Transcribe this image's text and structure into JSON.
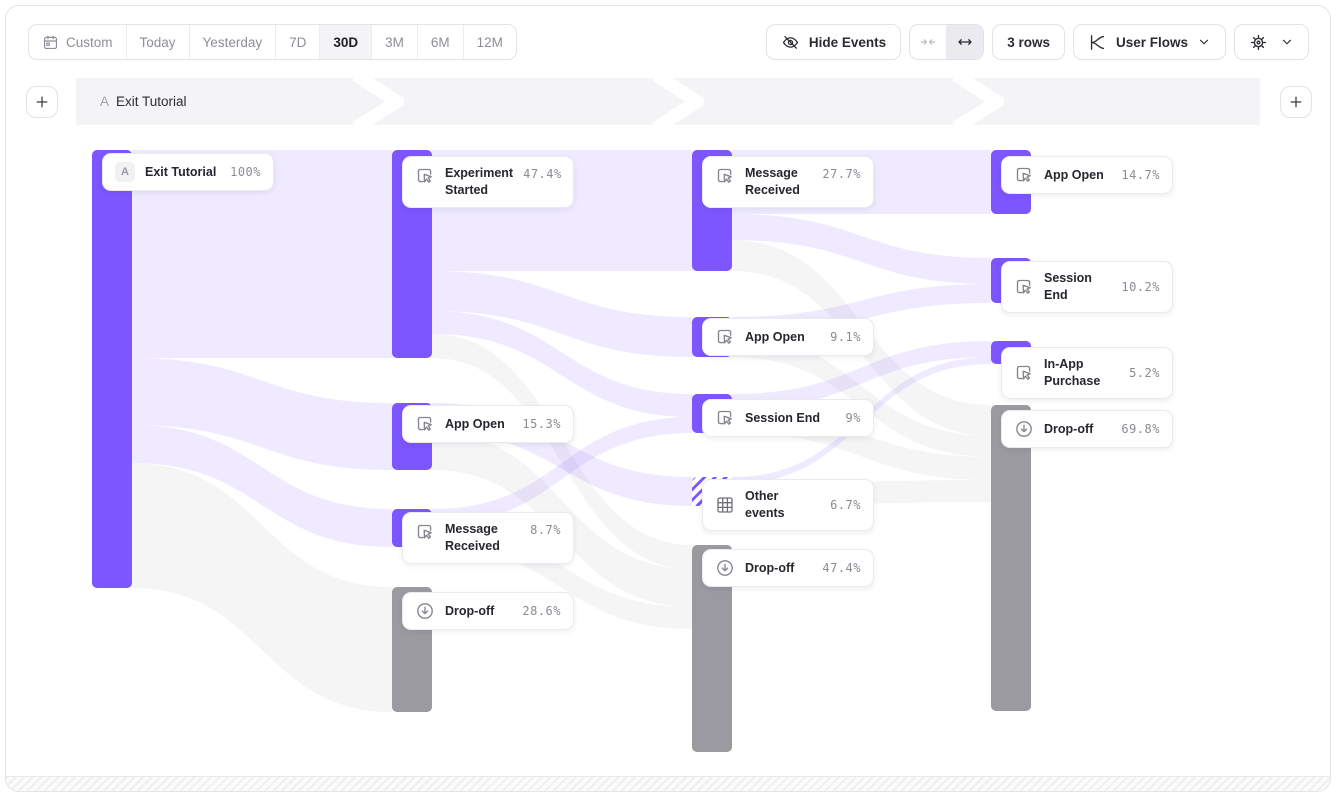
{
  "toolbar": {
    "date_ranges": [
      "Custom",
      "Today",
      "Yesterday",
      "7D",
      "30D",
      "3M",
      "6M",
      "12M"
    ],
    "selected_range": "30D",
    "hide_events_label": "Hide Events",
    "rows_label": "3 rows",
    "view_mode_label": "User Flows",
    "icons": [
      "calendar-icon",
      "eye-off-icon",
      "collapse-columns-icon",
      "expand-columns-icon",
      "flows-chart-icon",
      "chevron-down-icon",
      "gear-icon"
    ]
  },
  "flow_header": {
    "step_letter": "A",
    "step_name": "Exit Tutorial"
  },
  "colors": {
    "accent_purple": "#7d56ff",
    "flow_purple_light": "#ece8fe",
    "dropoff_gray": "#9a9aa0",
    "flow_gray_light": "#f3f3f5",
    "band_gray": "#f4f4f6"
  },
  "chart_data": {
    "type": "sankey",
    "start_event": "Exit Tutorial",
    "units": "percent of users",
    "columns": [
      {
        "step": 1,
        "nodes": [
          {
            "name": "Exit Tutorial",
            "value_pct": 100,
            "label": "100%",
            "kind": "start"
          }
        ]
      },
      {
        "step": 2,
        "nodes": [
          {
            "name": "Experiment Started",
            "value_pct": 47.4,
            "label": "47.4%",
            "kind": "event"
          },
          {
            "name": "App Open",
            "value_pct": 15.3,
            "label": "15.3%",
            "kind": "event"
          },
          {
            "name": "Message Received",
            "value_pct": 8.7,
            "label": "8.7%",
            "kind": "event"
          },
          {
            "name": "Drop-off",
            "value_pct": 28.6,
            "label": "28.6%",
            "kind": "dropoff"
          }
        ]
      },
      {
        "step": 3,
        "nodes": [
          {
            "name": "Message Received",
            "value_pct": 27.7,
            "label": "27.7%",
            "kind": "event"
          },
          {
            "name": "App Open",
            "value_pct": 9.1,
            "label": "9.1%",
            "kind": "event"
          },
          {
            "name": "Session End",
            "value_pct": 9,
            "label": "9%",
            "kind": "event"
          },
          {
            "name": "Other events",
            "value_pct": 6.7,
            "label": "6.7%",
            "kind": "other"
          },
          {
            "name": "Drop-off",
            "value_pct": 47.4,
            "label": "47.4%",
            "kind": "dropoff"
          }
        ]
      },
      {
        "step": 4,
        "nodes": [
          {
            "name": "App Open",
            "value_pct": 14.7,
            "label": "14.7%",
            "kind": "event"
          },
          {
            "name": "Session End",
            "value_pct": 10.2,
            "label": "10.2%",
            "kind": "event"
          },
          {
            "name": "In-App Purchase",
            "value_pct": 5.2,
            "label": "5.2%",
            "kind": "event"
          },
          {
            "name": "Drop-off",
            "value_pct": 69.8,
            "label": "69.8%",
            "kind": "dropoff"
          }
        ]
      }
    ]
  }
}
